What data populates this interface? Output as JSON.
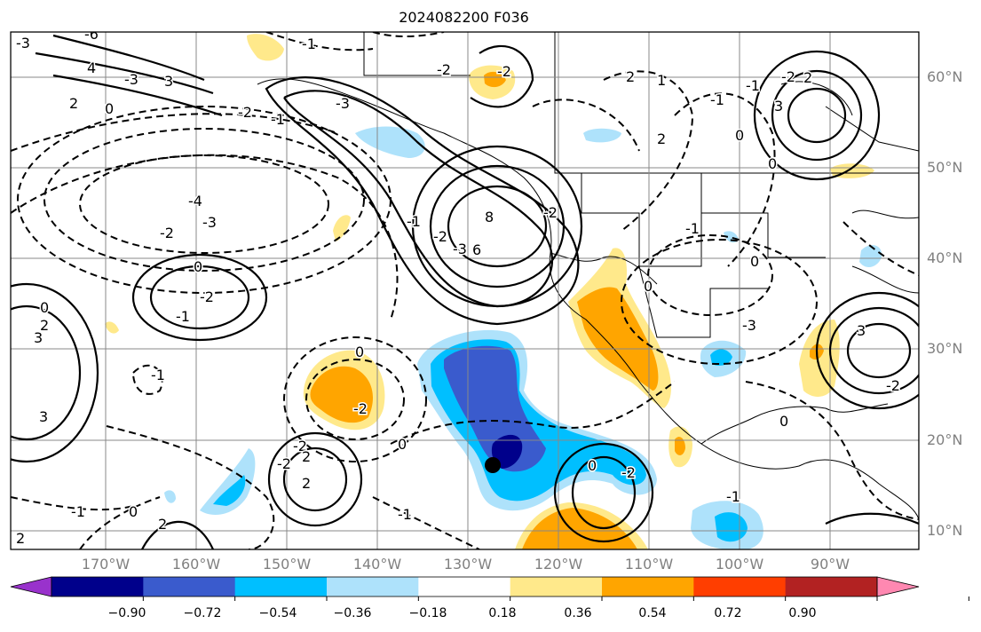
{
  "title": "2024082200 F036",
  "map": {
    "lat_labels": [
      "60°N",
      "50°N",
      "40°N",
      "30°N",
      "20°N",
      "10°N"
    ],
    "lon_labels": [
      "170°W",
      "160°W",
      "150°W",
      "140°W",
      "130°W",
      "120°W",
      "110°W",
      "100°W",
      "90°W"
    ],
    "contour_labels": [
      "-3",
      "-6",
      "-1",
      "4",
      "-3",
      "2",
      "3",
      "0",
      "-2",
      "-1",
      "-3",
      "-2",
      "-2",
      "-4",
      "-3",
      "-2",
      "0",
      "-2",
      "-1",
      "0",
      "2",
      "3",
      "6",
      "8",
      "-2",
      "-1",
      "-3",
      "-2",
      "0",
      "-2",
      "-1",
      "-2",
      "0",
      "2",
      "2",
      "-2",
      "-1",
      "3",
      "0",
      "2",
      "2",
      "-1",
      "0",
      "-2",
      "-1",
      "-1",
      "0",
      "0",
      "-3",
      "1",
      "2",
      "2",
      "-1",
      "-1",
      "0",
      "-2",
      "3",
      "2",
      "0",
      "0",
      "-2",
      "3"
    ]
  },
  "colorbar": {
    "colors": [
      "#9932cc",
      "#00008b",
      "#3a5bcd",
      "#00bfff",
      "#aee2fb",
      "#ffffff",
      "#ffe98b",
      "#ffa500",
      "#ff3e00",
      "#b22222",
      "#ff88b1"
    ],
    "tick_labels": [
      "−0.90",
      "−0.72",
      "−0.54",
      "−0.36",
      "−0.18",
      "0.18",
      "0.36",
      "0.54",
      "0.72",
      "0.90"
    ]
  }
}
